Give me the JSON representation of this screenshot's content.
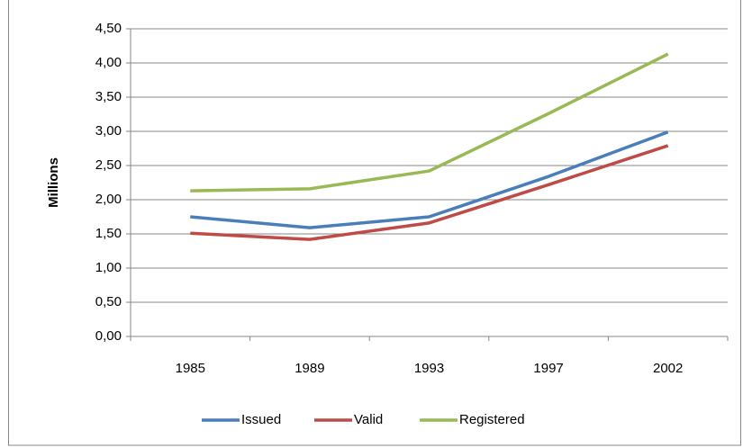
{
  "chart_data": {
    "type": "line",
    "y_label": "Millions",
    "categories": [
      "1985",
      "1989",
      "1993",
      "1997",
      "2002"
    ],
    "series": [
      {
        "name": "Issued",
        "color": "#4a7ebb",
        "values": [
          1.75,
          1.59,
          1.75,
          2.34,
          2.99
        ]
      },
      {
        "name": "Valid",
        "color": "#be4b48",
        "values": [
          1.51,
          1.42,
          1.66,
          2.22,
          2.79
        ]
      },
      {
        "name": "Registered",
        "color": "#98b954",
        "values": [
          2.13,
          2.16,
          2.42,
          3.26,
          4.13
        ]
      }
    ],
    "ylim": [
      0,
      4.5
    ],
    "yticks": [
      {
        "value": 0,
        "label": "0,00"
      },
      {
        "value": 0.5,
        "label": "0,50"
      },
      {
        "value": 1,
        "label": "1,00"
      },
      {
        "value": 1.5,
        "label": "1,50"
      },
      {
        "value": 2,
        "label": "2,00"
      },
      {
        "value": 2.5,
        "label": "2,50"
      },
      {
        "value": 3,
        "label": "3,00"
      },
      {
        "value": 3.5,
        "label": "3,50"
      },
      {
        "value": 4,
        "label": "4,00"
      },
      {
        "value": 4.5,
        "label": "4,50"
      }
    ],
    "grid": true,
    "legend": "bottom"
  }
}
